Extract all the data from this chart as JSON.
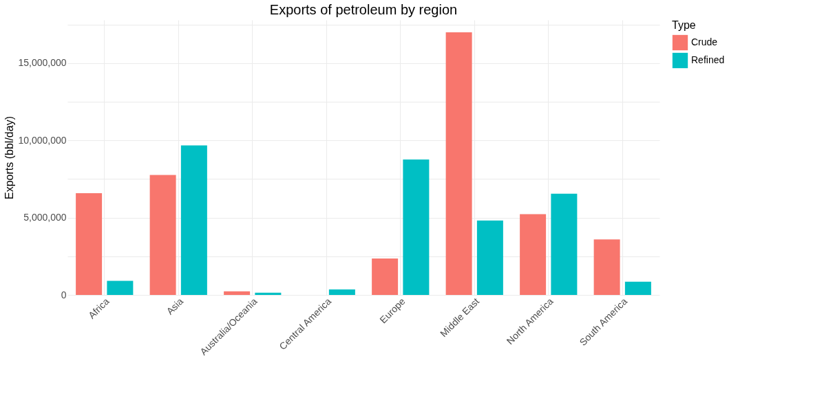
{
  "chart_data": {
    "type": "bar",
    "title": "Exports of petroleum by region",
    "ylabel": "Exports (bbl/day)",
    "legend_title": "Type",
    "categories": [
      "Africa",
      "Asia",
      "Australia/Oceania",
      "Central America",
      "Europe",
      "Middle East",
      "North America",
      "South America"
    ],
    "series": [
      {
        "name": "Crude",
        "color": "#f8766d",
        "values": [
          6590000,
          7770000,
          230000,
          0,
          2360000,
          17000000,
          5230000,
          3590000
        ]
      },
      {
        "name": "Refined",
        "color": "#00bfc4",
        "values": [
          910000,
          9680000,
          140000,
          360000,
          8770000,
          4820000,
          6550000,
          860000
        ]
      }
    ],
    "ylim": [
      0,
      17800000
    ],
    "yticks": [
      {
        "value": 0,
        "label": "0"
      },
      {
        "value": 2500000,
        "label": null
      },
      {
        "value": 5000000,
        "label": "5,000,000"
      },
      {
        "value": 7500000,
        "label": null
      },
      {
        "value": 10000000,
        "label": "10,000,000"
      },
      {
        "value": 12500000,
        "label": null
      },
      {
        "value": 15000000,
        "label": "15,000,000"
      },
      {
        "value": 17500000,
        "label": null
      }
    ],
    "grid": true,
    "legend": "right"
  }
}
